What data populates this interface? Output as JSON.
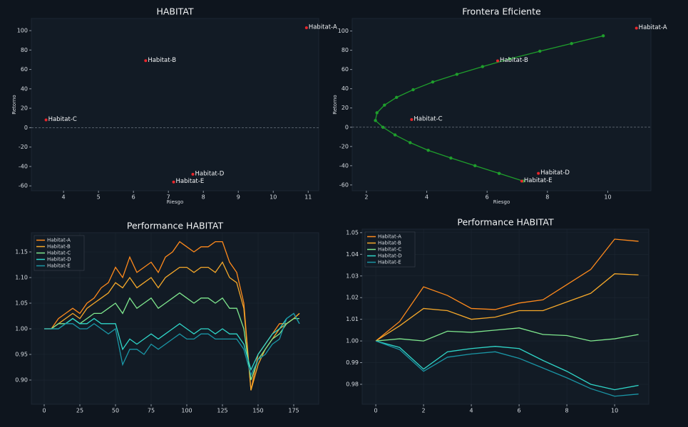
{
  "chart_data": [
    {
      "type": "scatter",
      "title": "HABITAT",
      "xlabel": "Riesgo",
      "ylabel": "Retorno",
      "color": "#e8262b",
      "categories": [
        "Habitat-A",
        "Habitat-B",
        "Habitat-C",
        "Habitat-D",
        "Habitat-E"
      ],
      "x": [
        10.95,
        6.35,
        3.5,
        7.7,
        7.15
      ],
      "values": [
        103,
        69,
        8,
        -48,
        -56
      ],
      "xlim": [
        3.08,
        11.3
      ],
      "xticks": [
        4,
        5,
        6,
        7,
        8,
        9,
        10,
        11
      ],
      "ylim": [
        -65,
        112.5
      ],
      "yticks": [
        -60,
        -40,
        -20,
        0,
        20,
        40,
        60,
        80,
        100
      ],
      "hline": 0
    },
    {
      "type": "scatter",
      "title": "Frontera Eficiente",
      "xlabel": "Riesgo",
      "ylabel": "Retorno",
      "color": "#e8262b",
      "categories": [
        "Habitat-A",
        "Habitat-B",
        "Habitat-C",
        "Habitat-D",
        "Habitat-E"
      ],
      "x": [
        10.95,
        6.35,
        3.5,
        7.7,
        7.15
      ],
      "values": [
        103,
        69,
        8,
        -48,
        -56
      ],
      "series": [
        {
          "color": "#1f9e2c",
          "markers": true,
          "x": [
            9.85,
            8.8,
            7.75,
            6.75,
            5.85,
            5.0,
            4.2,
            3.55,
            3.0,
            2.6,
            2.35,
            2.3,
            2.55,
            2.95,
            3.45,
            4.05,
            4.8,
            5.6,
            6.4,
            7.2
          ],
          "values": [
            95,
            87,
            79,
            71,
            63,
            55,
            47,
            39,
            31,
            23,
            15,
            7,
            0,
            -8,
            -16,
            -24,
            -32,
            -40,
            -48,
            -56
          ]
        }
      ],
      "xlim": [
        1.53,
        11.43
      ],
      "xticks": [
        2,
        4,
        6,
        8,
        10
      ],
      "ylim": [
        -66,
        113
      ],
      "yticks": [
        -60,
        -40,
        -20,
        0,
        20,
        40,
        60,
        80,
        100
      ],
      "hline": 0
    },
    {
      "type": "line",
      "title": "Performance HABITAT",
      "legend": "upper left",
      "grid": true,
      "x": [
        0,
        5,
        10,
        15,
        20,
        25,
        30,
        35,
        40,
        45,
        50,
        55,
        60,
        65,
        70,
        75,
        80,
        85,
        90,
        95,
        100,
        105,
        110,
        115,
        120,
        125,
        130,
        135,
        140,
        145,
        150,
        155,
        160,
        165,
        170,
        175,
        179
      ],
      "series": [
        {
          "name": "Habitat-A",
          "color": "#ff8a1c",
          "values": [
            1.0,
            1.0,
            1.02,
            1.03,
            1.04,
            1.03,
            1.05,
            1.06,
            1.08,
            1.09,
            1.12,
            1.1,
            1.14,
            1.11,
            1.12,
            1.13,
            1.11,
            1.14,
            1.15,
            1.17,
            1.16,
            1.15,
            1.16,
            1.16,
            1.17,
            1.17,
            1.13,
            1.11,
            1.05,
            0.88,
            0.95,
            0.97,
            0.99,
            1.01,
            1.01,
            1.02,
            1.03
          ]
        },
        {
          "name": "Habitat-B",
          "color": "#f5a82a",
          "values": [
            1.0,
            1.0,
            1.01,
            1.02,
            1.03,
            1.02,
            1.04,
            1.05,
            1.06,
            1.07,
            1.09,
            1.08,
            1.1,
            1.08,
            1.09,
            1.1,
            1.08,
            1.1,
            1.11,
            1.12,
            1.12,
            1.11,
            1.12,
            1.12,
            1.11,
            1.13,
            1.1,
            1.09,
            1.04,
            0.88,
            0.93,
            0.96,
            0.98,
            1.0,
            1.01,
            1.02,
            1.03
          ]
        },
        {
          "name": "Habitat-C",
          "color": "#7fe88e",
          "values": [
            1.0,
            1.0,
            1.01,
            1.01,
            1.02,
            1.01,
            1.02,
            1.03,
            1.03,
            1.04,
            1.05,
            1.03,
            1.06,
            1.04,
            1.05,
            1.06,
            1.04,
            1.05,
            1.06,
            1.07,
            1.06,
            1.05,
            1.06,
            1.06,
            1.05,
            1.06,
            1.04,
            1.04,
            1.0,
            0.9,
            0.94,
            0.96,
            0.98,
            0.99,
            1.01,
            1.02,
            1.02
          ]
        },
        {
          "name": "Habitat-D",
          "color": "#2fd6c9",
          "values": [
            1.0,
            1.0,
            1.0,
            1.01,
            1.02,
            1.01,
            1.01,
            1.02,
            1.01,
            1.01,
            1.01,
            0.96,
            0.98,
            0.97,
            0.98,
            0.99,
            0.98,
            0.99,
            1.0,
            1.01,
            1.0,
            0.99,
            1.0,
            1.0,
            0.99,
            1.0,
            0.99,
            0.99,
            0.97,
            0.92,
            0.95,
            0.97,
            0.99,
            1.0,
            1.02,
            1.03,
            1.01
          ]
        },
        {
          "name": "Habitat-E",
          "color": "#1a96a6",
          "values": [
            1.0,
            1.0,
            1.0,
            1.01,
            1.01,
            1.0,
            1.0,
            1.01,
            1.0,
            0.99,
            1.0,
            0.93,
            0.96,
            0.96,
            0.95,
            0.97,
            0.96,
            0.97,
            0.98,
            0.99,
            0.98,
            0.98,
            0.99,
            0.99,
            0.98,
            0.98,
            0.98,
            0.98,
            0.96,
            0.91,
            0.94,
            0.95,
            0.97,
            0.98,
            1.02,
            1.03,
            1.01
          ]
        }
      ],
      "xlim": [
        -9,
        192.5
      ],
      "xticks": [
        0,
        25,
        50,
        75,
        100,
        125,
        150,
        175
      ],
      "ylim": [
        0.8528,
        1.1875
      ],
      "yticks": [
        {
          "value": 0.9,
          "label": "0.90"
        },
        {
          "value": 0.95,
          "label": "0.95"
        },
        {
          "value": 1.0,
          "label": "1.00"
        },
        {
          "value": 1.05,
          "label": "1.05"
        },
        {
          "value": 1.1,
          "label": "1.10"
        },
        {
          "value": 1.15,
          "label": "1.15"
        }
      ]
    },
    {
      "type": "line",
      "title": "Performance HABITAT",
      "legend": "upper left",
      "grid": true,
      "x": [
        0,
        1,
        2,
        3,
        4,
        5,
        6,
        7,
        8,
        9,
        10,
        11
      ],
      "series": [
        {
          "name": "Habitat-A",
          "color": "#ff8a1c",
          "values": [
            1.0,
            1.009,
            1.025,
            1.021,
            1.015,
            1.0145,
            1.0175,
            1.019,
            1.026,
            1.033,
            1.047,
            1.046
          ]
        },
        {
          "name": "Habitat-B",
          "color": "#f5a82a",
          "values": [
            1.0,
            1.007,
            1.015,
            1.014,
            1.01,
            1.011,
            1.014,
            1.014,
            1.018,
            1.022,
            1.031,
            1.0305
          ]
        },
        {
          "name": "Habitat-C",
          "color": "#7fe88e",
          "values": [
            1.0,
            1.001,
            1.0,
            1.0045,
            1.004,
            1.005,
            1.006,
            1.003,
            1.0025,
            1.0,
            1.001,
            1.003
          ]
        },
        {
          "name": "Habitat-D",
          "color": "#2fd6c9",
          "values": [
            1.0,
            0.997,
            0.987,
            0.995,
            0.9965,
            0.9975,
            0.9965,
            0.991,
            0.986,
            0.98,
            0.9775,
            0.9795
          ]
        },
        {
          "name": "Habitat-E",
          "color": "#1a96a6",
          "values": [
            1.0,
            0.996,
            0.986,
            0.9925,
            0.994,
            0.995,
            0.992,
            0.9875,
            0.983,
            0.978,
            0.9745,
            0.9755
          ]
        }
      ],
      "xlim": [
        -0.57,
        11.43
      ],
      "xticks": [
        0,
        2,
        4,
        6,
        8,
        10
      ],
      "ylim": [
        0.9708,
        1.0516
      ],
      "yticks": [
        {
          "value": 0.98,
          "label": "0.98"
        },
        {
          "value": 0.99,
          "label": "0.99"
        },
        {
          "value": 1.0,
          "label": "1.00"
        },
        {
          "value": 1.01,
          "label": "1.01"
        },
        {
          "value": 1.02,
          "label": "1.02"
        },
        {
          "value": 1.03,
          "label": "1.03"
        },
        {
          "value": 1.04,
          "label": "1.04"
        },
        {
          "value": 1.05,
          "label": "1.05"
        }
      ]
    }
  ]
}
